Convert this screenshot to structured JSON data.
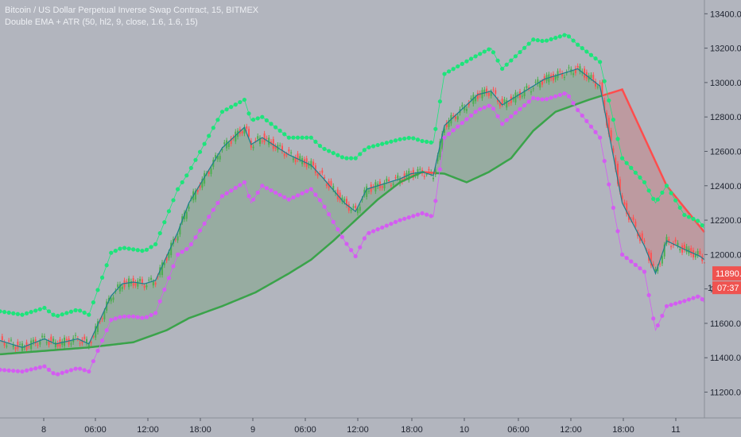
{
  "legend": {
    "title": "Bitcoin / US Dollar Perpetual Inverse Swap Contract, 15, BITMEX",
    "indicator": "Double EMA + ATR (50, hl2, 9, close, 1.6, 1.6, 15)"
  },
  "colors": {
    "background": "#b2b5be",
    "bull": "#4caf50",
    "bear": "#ff5252",
    "upper_dots": "#1de47b",
    "lower_dots": "#d45cf2",
    "fast_ema": "#1b7f8d",
    "fill_bull": "rgba(56,142,60,0.22)",
    "fill_bear": "rgba(229,57,53,0.22)"
  },
  "price_badge": {
    "value": "11890.0",
    "countdown": "07:37",
    "partial_label": "1"
  },
  "chart_data": {
    "type": "line",
    "title": "Bitcoin / US Dollar Perpetual Inverse Swap Contract, 15, BITMEX",
    "ylim": [
      11050,
      13480
    ],
    "y_ticks": [
      11200,
      11400,
      11600,
      11800,
      12000,
      12200,
      12400,
      12600,
      12800,
      13000,
      13200,
      13400
    ],
    "x_ticks": [
      "8",
      "06:00",
      "12:00",
      "18:00",
      "9",
      "06:00",
      "12:00",
      "18:00",
      "10",
      "06:00",
      "12:00",
      "18:00",
      "11"
    ],
    "grid": false,
    "series": [
      {
        "name": "Slow EMA (50)",
        "x": [
          0,
          20,
          40,
          60,
          75,
          85,
          100,
          115,
          130,
          140,
          150,
          160,
          170,
          180,
          190,
          200,
          210,
          220,
          230,
          240,
          250,
          265,
          280,
          300,
          317
        ],
        "values": [
          11420,
          11440,
          11460,
          11490,
          11560,
          11630,
          11700,
          11780,
          11890,
          11970,
          12080,
          12200,
          12320,
          12420,
          12480,
          12470,
          12420,
          12480,
          12560,
          12720,
          12830,
          12900,
          12960,
          12400,
          12130
        ]
      },
      {
        "name": "Fast EMA (9)",
        "x": [
          0,
          10,
          20,
          25,
          35,
          40,
          50,
          55,
          60,
          65,
          70,
          80,
          85,
          100,
          110,
          113,
          118,
          130,
          140,
          145,
          155,
          160,
          165,
          180,
          185,
          190,
          195,
          200,
          215,
          221,
          226,
          240,
          245,
          255,
          260,
          270,
          280,
          290,
          295,
          300,
          308,
          315,
          317
        ],
        "values": [
          11500,
          11460,
          11510,
          11480,
          11510,
          11480,
          11760,
          11830,
          11840,
          11830,
          11850,
          12130,
          12300,
          12620,
          12740,
          12640,
          12680,
          12580,
          12520,
          12450,
          12300,
          12250,
          12380,
          12440,
          12470,
          12480,
          12460,
          12750,
          12930,
          12950,
          12870,
          12980,
          13020,
          13060,
          13080,
          12980,
          12300,
          12050,
          11890,
          12080,
          12030,
          11990,
          11970
        ]
      },
      {
        "name": "Upper ATR band",
        "x": [
          0,
          10,
          20,
          25,
          35,
          40,
          50,
          55,
          60,
          65,
          70,
          80,
          85,
          100,
          110,
          113,
          118,
          130,
          140,
          145,
          155,
          160,
          165,
          180,
          185,
          190,
          195,
          200,
          215,
          221,
          226,
          240,
          245,
          255,
          260,
          270,
          280,
          290,
          295,
          300,
          308,
          315,
          317
        ],
        "values": [
          11670,
          11650,
          11690,
          11640,
          11680,
          11650,
          12010,
          12040,
          12030,
          12020,
          12060,
          12380,
          12480,
          12830,
          12900,
          12780,
          12800,
          12680,
          12680,
          12620,
          12560,
          12560,
          12620,
          12670,
          12680,
          12660,
          12650,
          13050,
          13160,
          13200,
          13080,
          13250,
          13240,
          13280,
          13220,
          13120,
          12560,
          12420,
          12300,
          12400,
          12230,
          12190,
          12150
        ]
      },
      {
        "name": "Lower ATR band",
        "x": [
          0,
          10,
          20,
          25,
          35,
          40,
          50,
          55,
          60,
          65,
          70,
          80,
          85,
          100,
          110,
          113,
          118,
          130,
          140,
          145,
          155,
          160,
          165,
          180,
          185,
          190,
          195,
          200,
          215,
          221,
          226,
          240,
          245,
          255,
          260,
          270,
          280,
          290,
          295,
          300,
          308,
          315,
          317
        ],
        "values": [
          11330,
          11320,
          11350,
          11300,
          11340,
          11320,
          11620,
          11640,
          11640,
          11630,
          11660,
          12000,
          12040,
          12340,
          12420,
          12300,
          12400,
          12320,
          12380,
          12300,
          12080,
          11990,
          12120,
          12200,
          12220,
          12240,
          12220,
          12680,
          12840,
          12870,
          12760,
          12910,
          12900,
          12940,
          12840,
          12680,
          12000,
          11900,
          11560,
          11700,
          11730,
          11760,
          11720
        ]
      }
    ]
  }
}
